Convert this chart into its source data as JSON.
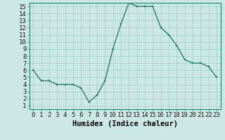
{
  "x": [
    0,
    1,
    2,
    3,
    4,
    5,
    6,
    7,
    8,
    9,
    10,
    11,
    12,
    13,
    14,
    15,
    16,
    17,
    18,
    19,
    20,
    21,
    22,
    23
  ],
  "y": [
    6,
    4.5,
    4.5,
    4,
    4,
    4,
    3.5,
    1.5,
    2.5,
    4.5,
    9,
    12.5,
    15.5,
    15,
    15,
    15,
    12,
    11,
    9.5,
    7.5,
    7,
    7,
    6.5,
    5
  ],
  "line_color": "#2d7d6b",
  "marker_color": "#2d7d6b",
  "bg_color": "#cce8e4",
  "grid_color": "#9ecdc7",
  "xlabel": "Humidex (Indice chaleur)",
  "xlim": [
    -0.5,
    23.5
  ],
  "ylim": [
    0.5,
    15.5
  ],
  "yticks": [
    1,
    2,
    3,
    4,
    5,
    6,
    7,
    8,
    9,
    10,
    11,
    12,
    13,
    14,
    15
  ],
  "xticks": [
    0,
    1,
    2,
    3,
    4,
    5,
    6,
    7,
    8,
    9,
    10,
    11,
    12,
    13,
    14,
    15,
    16,
    17,
    18,
    19,
    20,
    21,
    22,
    23
  ],
  "xtick_labels": [
    "0",
    "1",
    "2",
    "3",
    "4",
    "5",
    "6",
    "7",
    "8",
    "9",
    "10",
    "11",
    "12",
    "13",
    "14",
    "15",
    "16",
    "17",
    "18",
    "19",
    "20",
    "21",
    "22",
    "23"
  ],
  "tick_fontsize": 6.5,
  "label_fontsize": 7.5
}
